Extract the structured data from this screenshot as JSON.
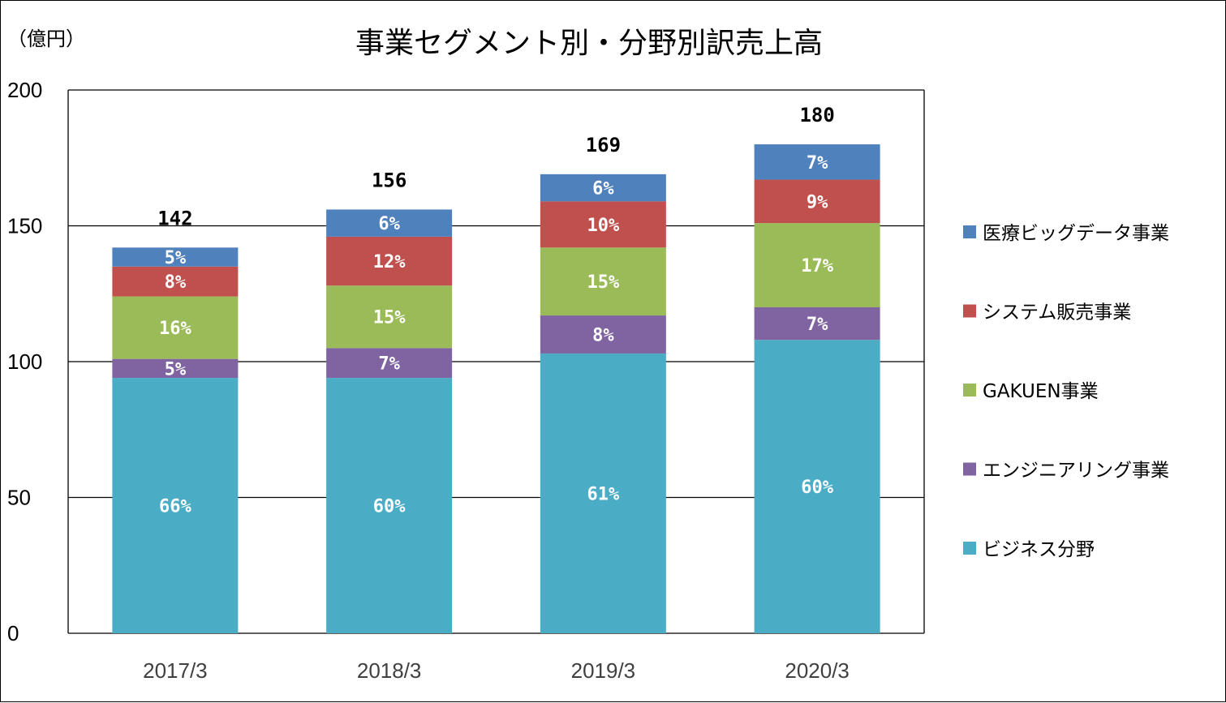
{
  "chart_data": {
    "type": "bar",
    "stacked": true,
    "title": "事業セグメント別・分野別訳売上高",
    "unit_label": "（億円）",
    "categories": [
      "2017/3",
      "2018/3",
      "2019/3",
      "2020/3"
    ],
    "ylim": [
      0,
      200
    ],
    "yticks": [
      "0",
      "50",
      "100",
      "150",
      "200"
    ],
    "grid": true,
    "legend_position": "right",
    "totals": [
      "142",
      "156",
      "169",
      "180"
    ],
    "series": [
      {
        "name": "ビジネス分野",
        "color": "#4BACC6",
        "values": [
          94,
          94,
          103,
          108
        ],
        "labels": [
          "66%",
          "60%",
          "61%",
          "60%"
        ]
      },
      {
        "name": "エンジニアリング事業",
        "color": "#8064A2",
        "values": [
          7,
          11,
          14,
          12
        ],
        "labels": [
          "5%",
          "7%",
          "8%",
          "7%"
        ]
      },
      {
        "name": "GAKUEN事業",
        "color": "#9BBB59",
        "values": [
          23,
          23,
          25,
          31
        ],
        "labels": [
          "16%",
          "15%",
          "15%",
          "17%"
        ]
      },
      {
        "name": "システム販売事業",
        "color": "#C0504D",
        "values": [
          11,
          18,
          17,
          16
        ],
        "labels": [
          "8%",
          "12%",
          "10%",
          "9%"
        ]
      },
      {
        "name": "医療ビッグデータ事業",
        "color": "#4F81BD",
        "values": [
          7,
          10,
          10,
          13
        ],
        "labels": [
          "5%",
          "6%",
          "6%",
          "7%"
        ]
      }
    ]
  }
}
